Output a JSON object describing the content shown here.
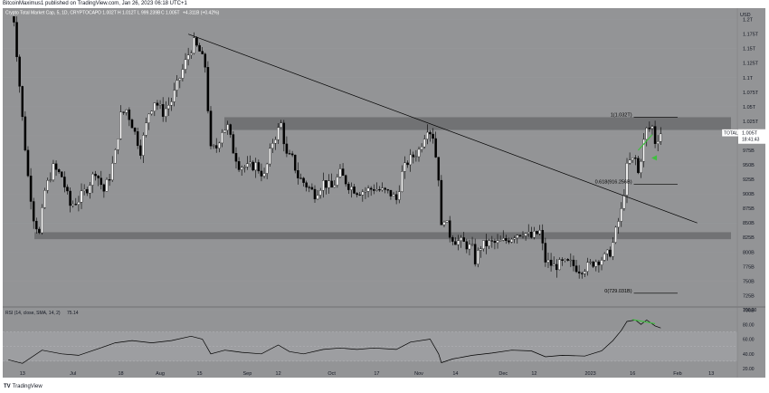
{
  "header": {
    "publisher": "BitcoinMaximus1 published on TradingView.com, Jan 26, 2023 06:18 UTC+1"
  },
  "legend": {
    "symbol": "Crypto Total Market Cap, 5, 1D, CRYPTOCAP",
    "o": "O 1.002T",
    "h": "H 1.012T",
    "l": "L 999.239B",
    "c": "C 1.005T",
    "chg": "+4.311B (+0.42%)"
  },
  "axis": {
    "currency": "USD",
    "y_ticks": [
      "1.2T",
      "1.175T",
      "1.15T",
      "1.125T",
      "1.1T",
      "1.075T",
      "1.05T",
      "1.025T",
      "975B",
      "950B",
      "925B",
      "900B",
      "875B",
      "850B",
      "825B",
      "800B",
      "775B",
      "750B",
      "725B",
      "700B"
    ],
    "x_ticks": [
      "13",
      "Jul",
      "18",
      "Aug",
      "15",
      "Sep",
      "12",
      "Oct",
      "17",
      "Nov",
      "14",
      "Dec",
      "12",
      "2023",
      "16",
      "Feb",
      "13"
    ]
  },
  "price_tag": {
    "symbol": "TOTAL",
    "value": "1.005T",
    "countdown": "18:41:43"
  },
  "fib_labels": [
    "1(1.032T)",
    "0.618(916.256B)",
    "0(729.031B)"
  ],
  "rsi": {
    "label": "RSI (14, close, SMA, 14, 2)",
    "value": "75.14",
    "ticks": [
      "100.00",
      "80.00",
      "60.00",
      "40.00",
      "20.00"
    ]
  },
  "footer": {
    "logo": "TV",
    "brand": "TradingView"
  },
  "colors": {
    "background": "#939496",
    "candle_up": "#ffffff",
    "candle_down": "#000000",
    "zone": "#6b6c6f",
    "arrow": "#3fbf3f",
    "rsi_band": "#9d9ea1"
  },
  "chart_data": [
    {
      "type": "candlestick",
      "title": "Crypto Total Market Cap, 5, 1D, CRYPTOCAP",
      "ylabel": "USD",
      "ylim": [
        700000000000,
        1210000000000
      ],
      "x_ticks": [
        "13",
        "Jul",
        "18",
        "Aug",
        "15",
        "Sep",
        "12",
        "Oct",
        "17",
        "Nov",
        "14",
        "Dec",
        "12",
        "2023",
        "16",
        "Feb",
        "13"
      ],
      "close_path": [
        {
          "date": "2022-06-08",
          "close": 1230
        },
        {
          "date": "2022-06-10",
          "close": 1200
        },
        {
          "date": "2022-06-13",
          "close": 1030
        },
        {
          "date": "2022-06-15",
          "close": 930
        },
        {
          "date": "2022-06-17",
          "close": 860
        },
        {
          "date": "2022-06-19",
          "close": 830
        },
        {
          "date": "2022-06-21",
          "close": 905
        },
        {
          "date": "2022-06-24",
          "close": 945
        },
        {
          "date": "2022-06-27",
          "close": 930
        },
        {
          "date": "2022-06-30",
          "close": 880
        },
        {
          "date": "2022-07-03",
          "close": 890
        },
        {
          "date": "2022-07-06",
          "close": 910
        },
        {
          "date": "2022-07-09",
          "close": 940
        },
        {
          "date": "2022-07-12",
          "close": 905
        },
        {
          "date": "2022-07-14",
          "close": 930
        },
        {
          "date": "2022-07-16",
          "close": 970
        },
        {
          "date": "2022-07-18",
          "close": 1035
        },
        {
          "date": "2022-07-20",
          "close": 1045
        },
        {
          "date": "2022-07-22",
          "close": 1020
        },
        {
          "date": "2022-07-25",
          "close": 975
        },
        {
          "date": "2022-07-28",
          "close": 1040
        },
        {
          "date": "2022-07-30",
          "close": 1060
        },
        {
          "date": "2022-08-02",
          "close": 1040
        },
        {
          "date": "2022-08-05",
          "close": 1060
        },
        {
          "date": "2022-08-08",
          "close": 1100
        },
        {
          "date": "2022-08-11",
          "close": 1140
        },
        {
          "date": "2022-08-13",
          "close": 1160
        },
        {
          "date": "2022-08-15",
          "close": 1145
        },
        {
          "date": "2022-08-17",
          "close": 1120
        },
        {
          "date": "2022-08-19",
          "close": 975
        },
        {
          "date": "2022-08-21",
          "close": 980
        },
        {
          "date": "2022-08-23",
          "close": 1010
        },
        {
          "date": "2022-08-25",
          "close": 1015
        },
        {
          "date": "2022-08-27",
          "close": 975
        },
        {
          "date": "2022-08-29",
          "close": 950
        },
        {
          "date": "2022-09-01",
          "close": 945
        },
        {
          "date": "2022-09-04",
          "close": 950
        },
        {
          "date": "2022-09-07",
          "close": 930
        },
        {
          "date": "2022-09-10",
          "close": 990
        },
        {
          "date": "2022-09-13",
          "close": 1020
        },
        {
          "date": "2022-09-15",
          "close": 965
        },
        {
          "date": "2022-09-17",
          "close": 960
        },
        {
          "date": "2022-09-19",
          "close": 930
        },
        {
          "date": "2022-09-22",
          "close": 915
        },
        {
          "date": "2022-09-25",
          "close": 900
        },
        {
          "date": "2022-09-28",
          "close": 920
        },
        {
          "date": "2022-10-01",
          "close": 910
        },
        {
          "date": "2022-10-04",
          "close": 935
        },
        {
          "date": "2022-10-07",
          "close": 915
        },
        {
          "date": "2022-10-10",
          "close": 905
        },
        {
          "date": "2022-10-13",
          "close": 905
        },
        {
          "date": "2022-10-16",
          "close": 910
        },
        {
          "date": "2022-10-19",
          "close": 905
        },
        {
          "date": "2022-10-22",
          "close": 900
        },
        {
          "date": "2022-10-24",
          "close": 890
        },
        {
          "date": "2022-10-26",
          "close": 935
        },
        {
          "date": "2022-10-28",
          "close": 955
        },
        {
          "date": "2022-10-30",
          "close": 965
        },
        {
          "date": "2022-11-01",
          "close": 975
        },
        {
          "date": "2022-11-04",
          "close": 1015
        },
        {
          "date": "2022-11-06",
          "close": 1000
        },
        {
          "date": "2022-11-08",
          "close": 930
        },
        {
          "date": "2022-11-09",
          "close": 840
        },
        {
          "date": "2022-11-10",
          "close": 860
        },
        {
          "date": "2022-11-12",
          "close": 830
        },
        {
          "date": "2022-11-14",
          "close": 820
        },
        {
          "date": "2022-11-17",
          "close": 815
        },
        {
          "date": "2022-11-20",
          "close": 805
        },
        {
          "date": "2022-11-21",
          "close": 785
        },
        {
          "date": "2022-11-23",
          "close": 810
        },
        {
          "date": "2022-11-26",
          "close": 815
        },
        {
          "date": "2022-11-29",
          "close": 815
        },
        {
          "date": "2022-12-02",
          "close": 820
        },
        {
          "date": "2022-12-05",
          "close": 830
        },
        {
          "date": "2022-12-08",
          "close": 835
        },
        {
          "date": "2022-12-11",
          "close": 825
        },
        {
          "date": "2022-12-14",
          "close": 835
        },
        {
          "date": "2022-12-16",
          "close": 785
        },
        {
          "date": "2022-12-19",
          "close": 775
        },
        {
          "date": "2022-12-22",
          "close": 780
        },
        {
          "date": "2022-12-25",
          "close": 780
        },
        {
          "date": "2022-12-28",
          "close": 770
        },
        {
          "date": "2022-12-31",
          "close": 775
        },
        {
          "date": "2023-01-03",
          "close": 785
        },
        {
          "date": "2023-01-06",
          "close": 790
        },
        {
          "date": "2023-01-08",
          "close": 800
        },
        {
          "date": "2023-01-09",
          "close": 815
        },
        {
          "date": "2023-01-10",
          "close": 835
        },
        {
          "date": "2023-01-12",
          "close": 870
        },
        {
          "date": "2023-01-13",
          "close": 905
        },
        {
          "date": "2023-01-14",
          "close": 945
        },
        {
          "date": "2023-01-15",
          "close": 955
        },
        {
          "date": "2023-01-17",
          "close": 960
        },
        {
          "date": "2023-01-18",
          "close": 935
        },
        {
          "date": "2023-01-20",
          "close": 990
        },
        {
          "date": "2023-01-21",
          "close": 1010
        },
        {
          "date": "2023-01-23",
          "close": 1015
        },
        {
          "date": "2023-01-24",
          "close": 990
        },
        {
          "date": "2023-01-26",
          "close": 1005
        }
      ],
      "support_zone": [
        822000000000,
        834000000000
      ],
      "resistance_zone": [
        1010000000000,
        1032000000000
      ],
      "descending_trendline": [
        {
          "date": "2022-08-11",
          "value": 1175
        },
        {
          "date": "2023-02-08",
          "value": 850
        }
      ],
      "fibonacci": [
        {
          "level": "1",
          "value": 1032000000000
        },
        {
          "level": "0.618",
          "value": 916256000000
        },
        {
          "level": "0",
          "value": 729031000000
        }
      ]
    },
    {
      "type": "line",
      "title": "RSI (14, close, SMA, 14, 2)",
      "ylim": [
        20,
        100
      ],
      "bands": [
        30,
        70
      ],
      "series": [
        {
          "values": [
            {
              "date": "2022-06-08",
              "value": 32
            },
            {
              "date": "2022-06-13",
              "value": 27
            },
            {
              "date": "2022-06-20",
              "value": 45
            },
            {
              "date": "2022-06-27",
              "value": 40
            },
            {
              "date": "2022-07-03",
              "value": 38
            },
            {
              "date": "2022-07-10",
              "value": 47
            },
            {
              "date": "2022-07-16",
              "value": 55
            },
            {
              "date": "2022-07-22",
              "value": 58
            },
            {
              "date": "2022-07-29",
              "value": 55
            },
            {
              "date": "2022-08-05",
              "value": 58
            },
            {
              "date": "2022-08-12",
              "value": 64
            },
            {
              "date": "2022-08-16",
              "value": 60
            },
            {
              "date": "2022-08-19",
              "value": 40
            },
            {
              "date": "2022-08-24",
              "value": 45
            },
            {
              "date": "2022-08-30",
              "value": 42
            },
            {
              "date": "2022-09-06",
              "value": 40
            },
            {
              "date": "2022-09-12",
              "value": 52
            },
            {
              "date": "2022-09-16",
              "value": 43
            },
            {
              "date": "2022-09-21",
              "value": 40
            },
            {
              "date": "2022-09-28",
              "value": 46
            },
            {
              "date": "2022-10-04",
              "value": 48
            },
            {
              "date": "2022-10-10",
              "value": 46
            },
            {
              "date": "2022-10-16",
              "value": 48
            },
            {
              "date": "2022-10-24",
              "value": 46
            },
            {
              "date": "2022-10-29",
              "value": 56
            },
            {
              "date": "2022-11-05",
              "value": 60
            },
            {
              "date": "2022-11-08",
              "value": 40
            },
            {
              "date": "2022-11-09",
              "value": 28
            },
            {
              "date": "2022-11-13",
              "value": 33
            },
            {
              "date": "2022-11-20",
              "value": 38
            },
            {
              "date": "2022-11-27",
              "value": 41
            },
            {
              "date": "2022-12-04",
              "value": 45
            },
            {
              "date": "2022-12-11",
              "value": 44
            },
            {
              "date": "2022-12-16",
              "value": 36
            },
            {
              "date": "2022-12-22",
              "value": 38
            },
            {
              "date": "2022-12-30",
              "value": 37
            },
            {
              "date": "2023-01-05",
              "value": 44
            },
            {
              "date": "2023-01-09",
              "value": 58
            },
            {
              "date": "2023-01-12",
              "value": 72
            },
            {
              "date": "2023-01-14",
              "value": 84
            },
            {
              "date": "2023-01-17",
              "value": 86
            },
            {
              "date": "2023-01-19",
              "value": 80
            },
            {
              "date": "2023-01-21",
              "value": 86
            },
            {
              "date": "2023-01-24",
              "value": 78
            },
            {
              "date": "2023-01-26",
              "value": 75.14
            }
          ]
        }
      ]
    }
  ]
}
